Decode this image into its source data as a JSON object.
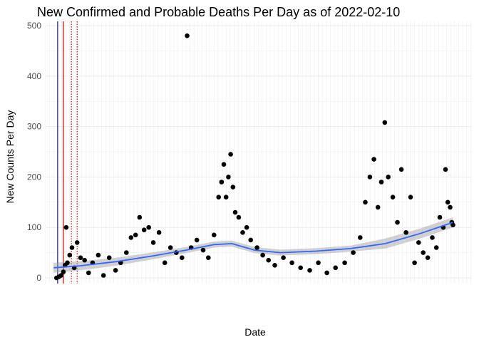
{
  "chart_data": {
    "type": "scatter",
    "title": "New Confirmed and Probable Deaths Per Day as of 2022-02-10",
    "xlabel": "Date",
    "ylabel": "New Counts Per Day",
    "ylim": [
      0,
      500
    ],
    "xlim": [
      "2020-03-01",
      "2022-03-15"
    ],
    "yticks": [
      0,
      100,
      200,
      300,
      400,
      500
    ],
    "grid": true,
    "legend": "none",
    "colors": {
      "points": "#000000",
      "smooth_line": "#3366ff",
      "smooth_band": "#999999",
      "vline_navy": "#1a1a80",
      "vline_red": "#cc0000"
    },
    "reference_lines": [
      {
        "date": "2020-03-22",
        "color": "#1a1a80",
        "style": "solid"
      },
      {
        "date": "2020-04-01",
        "color": "#cc0000",
        "style": "solid"
      },
      {
        "date": "2020-04-15",
        "color": "#cc0000",
        "style": "dotted"
      },
      {
        "date": "2020-04-25",
        "color": "#cc0000",
        "style": "dotted"
      }
    ],
    "smooth": [
      {
        "x": "2020-03-15",
        "y": 20
      },
      {
        "x": "2020-05-01",
        "y": 24
      },
      {
        "x": "2020-07-01",
        "y": 32
      },
      {
        "x": "2020-09-01",
        "y": 43
      },
      {
        "x": "2020-11-01",
        "y": 55
      },
      {
        "x": "2020-12-20",
        "y": 66
      },
      {
        "x": "2021-01-20",
        "y": 68
      },
      {
        "x": "2021-03-01",
        "y": 55
      },
      {
        "x": "2021-04-15",
        "y": 50
      },
      {
        "x": "2021-06-15",
        "y": 53
      },
      {
        "x": "2021-08-15",
        "y": 58
      },
      {
        "x": "2021-10-15",
        "y": 68
      },
      {
        "x": "2021-12-15",
        "y": 88
      },
      {
        "x": "2022-02-10",
        "y": 110
      }
    ],
    "series": [
      {
        "points": [
          {
            "x": "2020-03-20",
            "y": 0
          },
          {
            "x": "2020-03-24",
            "y": 2
          },
          {
            "x": "2020-03-28",
            "y": 5
          },
          {
            "x": "2020-04-01",
            "y": 12
          },
          {
            "x": "2020-04-04",
            "y": 25
          },
          {
            "x": "2020-04-06",
            "y": 100
          },
          {
            "x": "2020-04-08",
            "y": 30
          },
          {
            "x": "2020-04-12",
            "y": 45
          },
          {
            "x": "2020-04-16",
            "y": 60
          },
          {
            "x": "2020-04-20",
            "y": 20
          },
          {
            "x": "2020-04-25",
            "y": 70
          },
          {
            "x": "2020-05-01",
            "y": 40
          },
          {
            "x": "2020-05-08",
            "y": 35
          },
          {
            "x": "2020-05-15",
            "y": 10
          },
          {
            "x": "2020-05-22",
            "y": 30
          },
          {
            "x": "2020-06-01",
            "y": 45
          },
          {
            "x": "2020-06-10",
            "y": 5
          },
          {
            "x": "2020-06-20",
            "y": 40
          },
          {
            "x": "2020-07-01",
            "y": 15
          },
          {
            "x": "2020-07-10",
            "y": 30
          },
          {
            "x": "2020-07-20",
            "y": 50
          },
          {
            "x": "2020-07-28",
            "y": 80
          },
          {
            "x": "2020-08-05",
            "y": 85
          },
          {
            "x": "2020-08-12",
            "y": 120
          },
          {
            "x": "2020-08-20",
            "y": 95
          },
          {
            "x": "2020-08-28",
            "y": 100
          },
          {
            "x": "2020-09-05",
            "y": 70
          },
          {
            "x": "2020-09-15",
            "y": 90
          },
          {
            "x": "2020-09-25",
            "y": 30
          },
          {
            "x": "2020-10-05",
            "y": 60
          },
          {
            "x": "2020-10-15",
            "y": 50
          },
          {
            "x": "2020-10-25",
            "y": 40
          },
          {
            "x": "2020-11-03",
            "y": 480
          },
          {
            "x": "2020-11-10",
            "y": 60
          },
          {
            "x": "2020-11-20",
            "y": 75
          },
          {
            "x": "2020-12-01",
            "y": 55
          },
          {
            "x": "2020-12-10",
            "y": 40
          },
          {
            "x": "2020-12-20",
            "y": 85
          },
          {
            "x": "2020-12-28",
            "y": 160
          },
          {
            "x": "2021-01-02",
            "y": 190
          },
          {
            "x": "2021-01-06",
            "y": 225
          },
          {
            "x": "2021-01-10",
            "y": 160
          },
          {
            "x": "2021-01-14",
            "y": 200
          },
          {
            "x": "2021-01-18",
            "y": 245
          },
          {
            "x": "2021-01-22",
            "y": 180
          },
          {
            "x": "2021-01-26",
            "y": 130
          },
          {
            "x": "2021-02-01",
            "y": 120
          },
          {
            "x": "2021-02-08",
            "y": 90
          },
          {
            "x": "2021-02-15",
            "y": 100
          },
          {
            "x": "2021-02-22",
            "y": 75
          },
          {
            "x": "2021-03-05",
            "y": 60
          },
          {
            "x": "2021-03-15",
            "y": 45
          },
          {
            "x": "2021-03-25",
            "y": 35
          },
          {
            "x": "2021-04-05",
            "y": 25
          },
          {
            "x": "2021-04-20",
            "y": 40
          },
          {
            "x": "2021-05-05",
            "y": 30
          },
          {
            "x": "2021-05-20",
            "y": 20
          },
          {
            "x": "2021-06-05",
            "y": 15
          },
          {
            "x": "2021-06-20",
            "y": 30
          },
          {
            "x": "2021-07-05",
            "y": 10
          },
          {
            "x": "2021-07-20",
            "y": 20
          },
          {
            "x": "2021-08-05",
            "y": 30
          },
          {
            "x": "2021-08-20",
            "y": 50
          },
          {
            "x": "2021-09-01",
            "y": 80
          },
          {
            "x": "2021-09-10",
            "y": 150
          },
          {
            "x": "2021-09-18",
            "y": 200
          },
          {
            "x": "2021-09-25",
            "y": 235
          },
          {
            "x": "2021-10-02",
            "y": 140
          },
          {
            "x": "2021-10-08",
            "y": 190
          },
          {
            "x": "2021-10-14",
            "y": 308
          },
          {
            "x": "2021-10-20",
            "y": 200
          },
          {
            "x": "2021-10-28",
            "y": 160
          },
          {
            "x": "2021-11-05",
            "y": 110
          },
          {
            "x": "2021-11-12",
            "y": 215
          },
          {
            "x": "2021-11-20",
            "y": 90
          },
          {
            "x": "2021-11-28",
            "y": 160
          },
          {
            "x": "2021-12-05",
            "y": 30
          },
          {
            "x": "2021-12-12",
            "y": 70
          },
          {
            "x": "2021-12-20",
            "y": 50
          },
          {
            "x": "2021-12-28",
            "y": 40
          },
          {
            "x": "2022-01-05",
            "y": 80
          },
          {
            "x": "2022-01-12",
            "y": 60
          },
          {
            "x": "2022-01-18",
            "y": 120
          },
          {
            "x": "2022-01-24",
            "y": 100
          },
          {
            "x": "2022-01-28",
            "y": 215
          },
          {
            "x": "2022-02-01",
            "y": 150
          },
          {
            "x": "2022-02-05",
            "y": 140
          },
          {
            "x": "2022-02-08",
            "y": 110
          },
          {
            "x": "2022-02-10",
            "y": 105
          }
        ]
      }
    ]
  }
}
